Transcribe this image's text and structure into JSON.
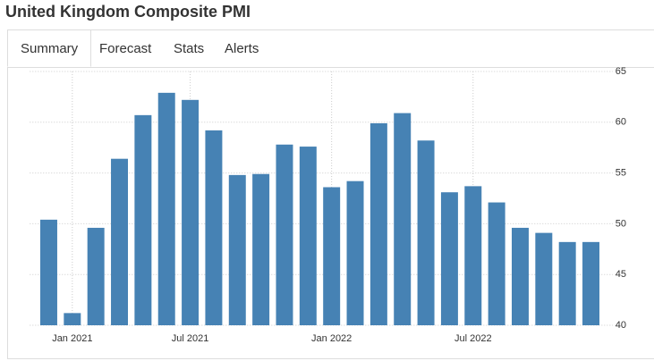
{
  "title": "United Kingdom Composite PMI",
  "tabs": [
    "Summary",
    "Forecast",
    "Stats",
    "Alerts"
  ],
  "chart_data": {
    "type": "bar",
    "categories": [
      null,
      "Jan 2021",
      null,
      null,
      null,
      null,
      "Jul 2021",
      null,
      null,
      null,
      null,
      null,
      "Jan 2022",
      null,
      null,
      null,
      null,
      null,
      "Jul 2022",
      null,
      null,
      null,
      null,
      null
    ],
    "values": [
      50.4,
      41.2,
      49.6,
      56.4,
      60.7,
      62.9,
      62.2,
      59.2,
      54.8,
      54.9,
      57.8,
      57.6,
      53.6,
      54.2,
      59.9,
      60.9,
      58.2,
      53.1,
      53.7,
      52.1,
      49.6,
      49.1,
      48.2,
      48.2
    ],
    "color": "#4682b4",
    "ylim": [
      40,
      65
    ],
    "yticks": [
      40,
      45,
      50,
      55,
      60,
      65
    ],
    "grid": true
  }
}
